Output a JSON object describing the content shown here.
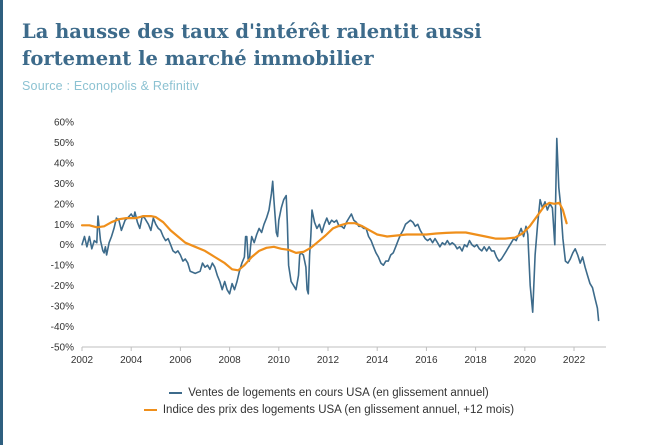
{
  "header": {
    "title_line1": "La hausse des taux d'intérêt ralentit aussi",
    "title_line2": "fortement le marché immobilier",
    "source": "Source : Econopolis & Refinitiv"
  },
  "chart_data": {
    "type": "line",
    "title": "",
    "xlabel": "",
    "ylabel": "",
    "xlim": [
      2002,
      2023.3
    ],
    "ylim": [
      -50,
      60
    ],
    "x_ticks": [
      2002,
      2004,
      2006,
      2008,
      2010,
      2012,
      2014,
      2016,
      2018,
      2020,
      2022
    ],
    "y_ticks": [
      60,
      50,
      40,
      30,
      20,
      10,
      0,
      -10,
      -20,
      -30,
      -40,
      -50
    ],
    "y_tick_labels": [
      "60%",
      "50%",
      "40%",
      "30%",
      "20%",
      "10%",
      "0%",
      "-10%",
      "-20%",
      "-30%",
      "-40%",
      "-50%"
    ],
    "grid": false,
    "legend_position": "bottom",
    "series": [
      {
        "name": "Ventes de logements en cours USA (en glissement annuel)",
        "color": "#3d6b8b",
        "points": [
          [
            2002.0,
            0
          ],
          [
            2002.1,
            4
          ],
          [
            2002.2,
            -1
          ],
          [
            2002.3,
            4
          ],
          [
            2002.4,
            -2
          ],
          [
            2002.5,
            2
          ],
          [
            2002.6,
            1
          ],
          [
            2002.65,
            14
          ],
          [
            2002.75,
            2
          ],
          [
            2002.85,
            -3
          ],
          [
            2002.9,
            -4
          ],
          [
            2002.95,
            -1
          ],
          [
            2003.0,
            -5
          ],
          [
            2003.1,
            1
          ],
          [
            2003.2,
            4
          ],
          [
            2003.3,
            8
          ],
          [
            2003.4,
            13
          ],
          [
            2003.5,
            12
          ],
          [
            2003.6,
            7
          ],
          [
            2003.75,
            12
          ],
          [
            2003.85,
            13
          ],
          [
            2004.0,
            15
          ],
          [
            2004.1,
            13
          ],
          [
            2004.15,
            16
          ],
          [
            2004.25,
            11
          ],
          [
            2004.35,
            8
          ],
          [
            2004.45,
            14
          ],
          [
            2004.55,
            13
          ],
          [
            2004.7,
            10
          ],
          [
            2004.8,
            7
          ],
          [
            2004.9,
            13
          ],
          [
            2005.0,
            10
          ],
          [
            2005.1,
            8
          ],
          [
            2005.2,
            7
          ],
          [
            2005.3,
            4
          ],
          [
            2005.4,
            2
          ],
          [
            2005.5,
            3
          ],
          [
            2005.6,
            0
          ],
          [
            2005.7,
            -3
          ],
          [
            2005.8,
            -4
          ],
          [
            2005.9,
            -3
          ],
          [
            2006.0,
            -5
          ],
          [
            2006.1,
            -8
          ],
          [
            2006.2,
            -7
          ],
          [
            2006.3,
            -9
          ],
          [
            2006.4,
            -13
          ],
          [
            2006.6,
            -14
          ],
          [
            2006.8,
            -13
          ],
          [
            2006.9,
            -9
          ],
          [
            2007.0,
            -11
          ],
          [
            2007.1,
            -10
          ],
          [
            2007.2,
            -12
          ],
          [
            2007.3,
            -9
          ],
          [
            2007.4,
            -11
          ],
          [
            2007.5,
            -15
          ],
          [
            2007.6,
            -18
          ],
          [
            2007.7,
            -22
          ],
          [
            2007.8,
            -18
          ],
          [
            2007.9,
            -22
          ],
          [
            2008.0,
            -24
          ],
          [
            2008.1,
            -19
          ],
          [
            2008.2,
            -22
          ],
          [
            2008.3,
            -18
          ],
          [
            2008.4,
            -13
          ],
          [
            2008.5,
            -9
          ],
          [
            2008.6,
            -6
          ],
          [
            2008.65,
            4
          ],
          [
            2008.7,
            4
          ],
          [
            2008.75,
            -7
          ],
          [
            2008.8,
            -8
          ],
          [
            2008.85,
            -1
          ],
          [
            2008.9,
            4
          ],
          [
            2009.0,
            1
          ],
          [
            2009.1,
            5
          ],
          [
            2009.2,
            8
          ],
          [
            2009.3,
            6
          ],
          [
            2009.4,
            10
          ],
          [
            2009.5,
            13
          ],
          [
            2009.6,
            17
          ],
          [
            2009.7,
            25
          ],
          [
            2009.75,
            31
          ],
          [
            2009.8,
            22
          ],
          [
            2009.85,
            14
          ],
          [
            2009.9,
            6
          ],
          [
            2009.95,
            4
          ],
          [
            2010.0,
            12
          ],
          [
            2010.1,
            18
          ],
          [
            2010.2,
            22
          ],
          [
            2010.3,
            24
          ],
          [
            2010.35,
            10
          ],
          [
            2010.4,
            -10
          ],
          [
            2010.5,
            -18
          ],
          [
            2010.6,
            -20
          ],
          [
            2010.7,
            -22
          ],
          [
            2010.8,
            -15
          ],
          [
            2010.85,
            -5
          ],
          [
            2010.9,
            -4
          ],
          [
            2011.0,
            -5
          ],
          [
            2011.1,
            -11
          ],
          [
            2011.15,
            -22
          ],
          [
            2011.2,
            -24
          ],
          [
            2011.25,
            -5
          ],
          [
            2011.3,
            4
          ],
          [
            2011.35,
            17
          ],
          [
            2011.45,
            11
          ],
          [
            2011.55,
            8
          ],
          [
            2011.65,
            10
          ],
          [
            2011.75,
            6
          ],
          [
            2011.85,
            10
          ],
          [
            2011.95,
            13
          ],
          [
            2012.05,
            10
          ],
          [
            2012.15,
            12
          ],
          [
            2012.25,
            11
          ],
          [
            2012.35,
            12
          ],
          [
            2012.45,
            9
          ],
          [
            2012.55,
            9
          ],
          [
            2012.65,
            8
          ],
          [
            2012.75,
            11
          ],
          [
            2012.85,
            13
          ],
          [
            2012.95,
            15
          ],
          [
            2013.05,
            12
          ],
          [
            2013.15,
            11
          ],
          [
            2013.25,
            9
          ],
          [
            2013.35,
            9
          ],
          [
            2013.45,
            8
          ],
          [
            2013.55,
            8
          ],
          [
            2013.65,
            4
          ],
          [
            2013.75,
            2
          ],
          [
            2013.85,
            -1
          ],
          [
            2013.95,
            -4
          ],
          [
            2014.05,
            -6
          ],
          [
            2014.15,
            -9
          ],
          [
            2014.25,
            -10
          ],
          [
            2014.35,
            -8
          ],
          [
            2014.45,
            -8
          ],
          [
            2014.55,
            -5
          ],
          [
            2014.65,
            -4
          ],
          [
            2014.75,
            -1
          ],
          [
            2014.85,
            2
          ],
          [
            2014.95,
            5
          ],
          [
            2015.05,
            7
          ],
          [
            2015.15,
            10
          ],
          [
            2015.25,
            11
          ],
          [
            2015.35,
            12
          ],
          [
            2015.45,
            11
          ],
          [
            2015.55,
            9
          ],
          [
            2015.65,
            10
          ],
          [
            2015.75,
            7
          ],
          [
            2015.85,
            5
          ],
          [
            2015.95,
            3
          ],
          [
            2016.05,
            2
          ],
          [
            2016.15,
            3
          ],
          [
            2016.25,
            1
          ],
          [
            2016.35,
            3
          ],
          [
            2016.45,
            1
          ],
          [
            2016.55,
            -1
          ],
          [
            2016.65,
            1
          ],
          [
            2016.75,
            0
          ],
          [
            2016.85,
            2
          ],
          [
            2016.95,
            0
          ],
          [
            2017.05,
            1
          ],
          [
            2017.15,
            0
          ],
          [
            2017.25,
            -2
          ],
          [
            2017.35,
            -1
          ],
          [
            2017.45,
            -3
          ],
          [
            2017.55,
            0
          ],
          [
            2017.65,
            -1
          ],
          [
            2017.75,
            2
          ],
          [
            2017.85,
            0
          ],
          [
            2017.95,
            -1
          ],
          [
            2018.05,
            0
          ],
          [
            2018.15,
            -2
          ],
          [
            2018.25,
            -3
          ],
          [
            2018.35,
            -1
          ],
          [
            2018.45,
            -3
          ],
          [
            2018.55,
            -1
          ],
          [
            2018.65,
            -3
          ],
          [
            2018.75,
            -3
          ],
          [
            2018.85,
            -6
          ],
          [
            2018.95,
            -8
          ],
          [
            2019.05,
            -7
          ],
          [
            2019.15,
            -5
          ],
          [
            2019.25,
            -3
          ],
          [
            2019.35,
            -1
          ],
          [
            2019.45,
            1
          ],
          [
            2019.55,
            3
          ],
          [
            2019.65,
            2
          ],
          [
            2019.75,
            5
          ],
          [
            2019.85,
            8
          ],
          [
            2019.95,
            4
          ],
          [
            2020.05,
            9
          ],
          [
            2020.12,
            5
          ],
          [
            2020.22,
            -20
          ],
          [
            2020.32,
            -33
          ],
          [
            2020.42,
            -5
          ],
          [
            2020.52,
            10
          ],
          [
            2020.62,
            22
          ],
          [
            2020.72,
            18
          ],
          [
            2020.82,
            21
          ],
          [
            2020.92,
            17
          ],
          [
            2021.02,
            20
          ],
          [
            2021.12,
            18
          ],
          [
            2021.22,
            0
          ],
          [
            2021.3,
            52
          ],
          [
            2021.38,
            28
          ],
          [
            2021.45,
            20
          ],
          [
            2021.55,
            3
          ],
          [
            2021.65,
            -8
          ],
          [
            2021.75,
            -9
          ],
          [
            2021.85,
            -7
          ],
          [
            2021.95,
            -4
          ],
          [
            2022.05,
            -2
          ],
          [
            2022.15,
            -5
          ],
          [
            2022.25,
            -9
          ],
          [
            2022.35,
            -6
          ],
          [
            2022.45,
            -11
          ],
          [
            2022.55,
            -15
          ],
          [
            2022.65,
            -19
          ],
          [
            2022.75,
            -21
          ],
          [
            2022.85,
            -26
          ],
          [
            2022.95,
            -31
          ],
          [
            2023.0,
            -37
          ]
        ]
      },
      {
        "name": "Indice des prix des logements USA (en glissement annuel, +12 mois)",
        "color": "#ef8f1b",
        "points": [
          [
            2002.0,
            9.5
          ],
          [
            2002.3,
            9.5
          ],
          [
            2002.6,
            8.5
          ],
          [
            2002.9,
            9.0
          ],
          [
            2003.2,
            11.0
          ],
          [
            2003.5,
            12.5
          ],
          [
            2003.8,
            13.0
          ],
          [
            2004.2,
            13.0
          ],
          [
            2004.5,
            14.0
          ],
          [
            2004.8,
            14.0
          ],
          [
            2005.0,
            13.5
          ],
          [
            2005.3,
            11.0
          ],
          [
            2005.6,
            7.0
          ],
          [
            2005.9,
            4.0
          ],
          [
            2006.2,
            1.0
          ],
          [
            2006.6,
            -1.0
          ],
          [
            2007.0,
            -3.0
          ],
          [
            2007.4,
            -6.0
          ],
          [
            2007.8,
            -9.0
          ],
          [
            2008.1,
            -12.0
          ],
          [
            2008.35,
            -12.5
          ],
          [
            2008.6,
            -10.0
          ],
          [
            2008.9,
            -6.0
          ],
          [
            2009.2,
            -3.0
          ],
          [
            2009.5,
            -1.5
          ],
          [
            2009.8,
            -1.0
          ],
          [
            2010.1,
            -2.0
          ],
          [
            2010.4,
            -2.5
          ],
          [
            2010.7,
            -4.0
          ],
          [
            2011.0,
            -3.5
          ],
          [
            2011.3,
            -1.5
          ],
          [
            2011.6,
            1.5
          ],
          [
            2011.9,
            4.5
          ],
          [
            2012.2,
            8.0
          ],
          [
            2012.5,
            9.5
          ],
          [
            2012.8,
            10.5
          ],
          [
            2013.1,
            10.5
          ],
          [
            2013.4,
            9.0
          ],
          [
            2013.7,
            7.0
          ],
          [
            2014.0,
            5.0
          ],
          [
            2014.4,
            4.0
          ],
          [
            2014.8,
            4.5
          ],
          [
            2015.2,
            5.0
          ],
          [
            2015.6,
            5.0
          ],
          [
            2016.0,
            5.0
          ],
          [
            2016.4,
            5.5
          ],
          [
            2016.8,
            5.8
          ],
          [
            2017.2,
            6.0
          ],
          [
            2017.6,
            6.0
          ],
          [
            2018.0,
            5.0
          ],
          [
            2018.4,
            4.0
          ],
          [
            2018.8,
            3.0
          ],
          [
            2019.2,
            3.0
          ],
          [
            2019.6,
            3.5
          ],
          [
            2019.9,
            5.5
          ],
          [
            2020.2,
            9.0
          ],
          [
            2020.5,
            14.0
          ],
          [
            2020.8,
            19.0
          ],
          [
            2021.0,
            20.5
          ],
          [
            2021.2,
            20.0
          ],
          [
            2021.4,
            20.5
          ],
          [
            2021.55,
            17.0
          ],
          [
            2021.7,
            10.5
          ]
        ]
      }
    ]
  }
}
